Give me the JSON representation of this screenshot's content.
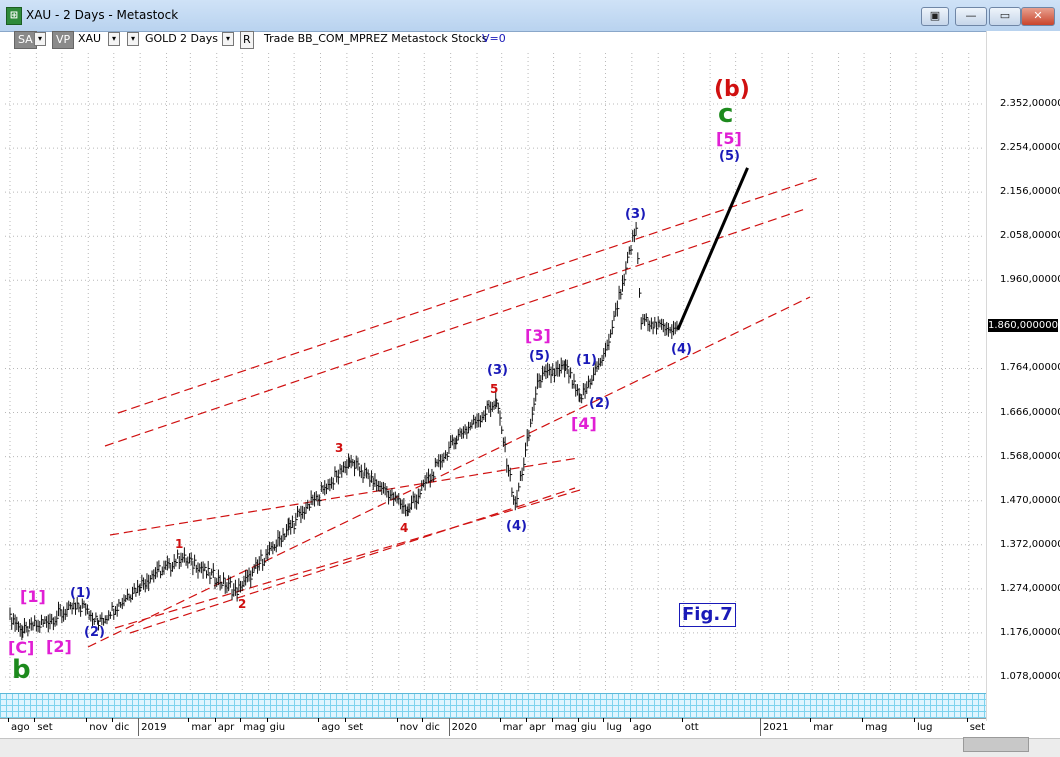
{
  "window": {
    "title": "XAU - 2 Days - Metastock",
    "buttons": [
      "▣",
      "—",
      "▭",
      "✕"
    ]
  },
  "toolbar": {
    "sa": "SA",
    "vp": "VP",
    "symbol": "XAU",
    "name": "GOLD",
    "period": "2 Days",
    "r_button": "R",
    "info": "Trade  BB_COM_MPREZ  Metastock  Stocks",
    "volume": "V=0"
  },
  "y_axis": {
    "labels": [
      "2.352,000000",
      "2.254,000000",
      "2.156,000000",
      "2.058,000000",
      "1.960,000000",
      "1.764,000000",
      "1.666,000000",
      "1.568,000000",
      "1.470,000000",
      "1.372,000000",
      "1.274,000000",
      "1.176,000000",
      "1.078,000000"
    ],
    "current_price": "1.860,000000"
  },
  "x_axis": {
    "labels": [
      "ago",
      "set",
      "nov",
      "dic",
      "2019",
      "mar",
      "apr",
      "mag",
      "giu",
      "ago",
      "set",
      "nov",
      "dic",
      "2020",
      "mar",
      "apr",
      "mag",
      "giu",
      "lug",
      "ago",
      "ott",
      "2021",
      "mar",
      "mag",
      "lug",
      "set"
    ]
  },
  "annotations": {
    "wave_b_big": "(b)",
    "wave_c_big": "c",
    "wave_5_mag": "[5]",
    "wave_5_blue_top": "(5)",
    "wave_3_blue_top": "(3)",
    "wave_4_blue_last": "(4)",
    "wave_3_mag": "[3]",
    "wave_5_blue_mid": "(5)",
    "wave_3_blue_mid": "(3)",
    "wave_1_blue_mid": "(1)",
    "wave_2_blue_mid": "(2)",
    "wave_4_mag": "[4]",
    "wave_4_blue_mid": "(4)",
    "red_5": "5",
    "red_3": "3",
    "red_4": "4",
    "red_1": "1",
    "red_2": "2",
    "mag_1": "[1]",
    "blue_1_left": "(1)",
    "blue_2_left": "(2)",
    "mag_2": "[2]",
    "mag_c": "[C]",
    "green_b": "b",
    "figure_label": "Fig.7"
  },
  "chart_data": {
    "type": "line",
    "title": "",
    "xlabel": "",
    "ylabel": "",
    "ylim": [
      1000,
      2450
    ],
    "grid": true,
    "series": [
      {
        "values": [
          {
            "x": "2018-08-01",
            "y": 1215
          },
          {
            "x": "2018-08-16",
            "y": 1178
          },
          {
            "x": "2018-09-15",
            "y": 1205
          },
          {
            "x": "2018-10-25",
            "y": 1238
          },
          {
            "x": "2018-11-13",
            "y": 1198
          },
          {
            "x": "2019-01-01",
            "y": 1285
          },
          {
            "x": "2019-02-20",
            "y": 1345
          },
          {
            "x": "2019-04-25",
            "y": 1268
          },
          {
            "x": "2019-06-25",
            "y": 1410
          },
          {
            "x": "2019-09-04",
            "y": 1557
          },
          {
            "x": "2019-11-12",
            "y": 1450
          },
          {
            "x": "2020-01-08",
            "y": 1610
          },
          {
            "x": "2020-02-24",
            "y": 1690
          },
          {
            "x": "2020-03-17",
            "y": 1455
          },
          {
            "x": "2020-04-14",
            "y": 1745
          },
          {
            "x": "2020-05-15",
            "y": 1765
          },
          {
            "x": "2020-06-01",
            "y": 1695
          },
          {
            "x": "2020-07-01",
            "y": 1800
          },
          {
            "x": "2020-08-06",
            "y": 2075
          },
          {
            "x": "2020-08-12",
            "y": 1870
          },
          {
            "x": "2020-09-24",
            "y": 1850
          }
        ]
      },
      {
        "values": [
          {
            "x": "2020-09-24",
            "y": 1850
          },
          {
            "x": "2020-12-15",
            "y": 2210
          }
        ]
      }
    ]
  }
}
